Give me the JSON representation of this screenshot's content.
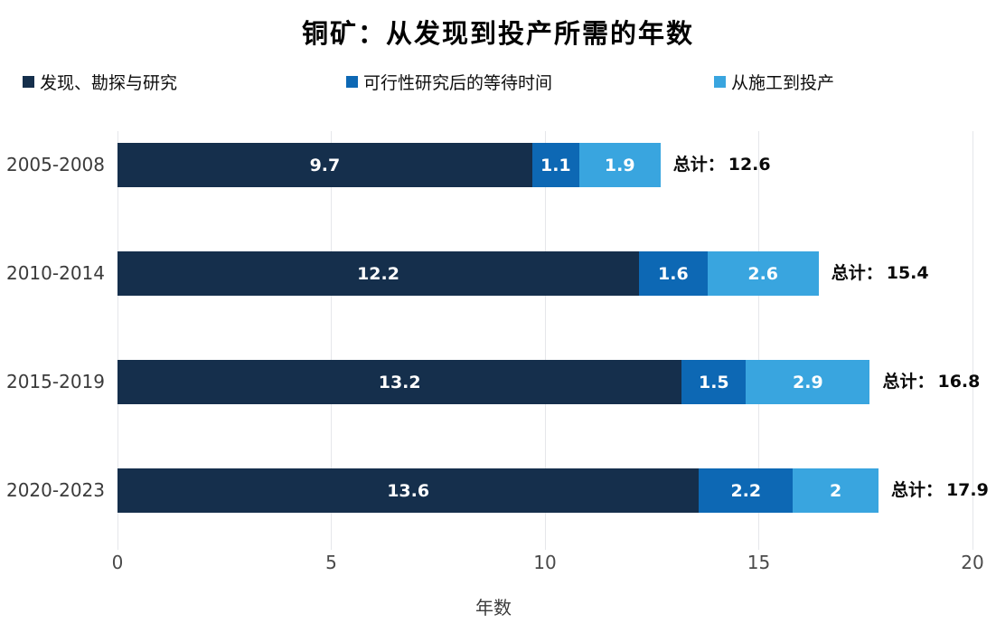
{
  "title": "铜矿：从发现到投产所需的年数",
  "xlabel": "年数",
  "total_prefix": "总计：",
  "legend": [
    {
      "label": "发现、勘探与研究",
      "color": "#152f4c"
    },
    {
      "label": "可行性研究后的等待时间",
      "color": "#0d68b4"
    },
    {
      "label": "从施工到投产",
      "color": "#39a5df"
    }
  ],
  "chart_data": {
    "type": "bar",
    "orientation": "horizontal",
    "stacked": true,
    "title": "铜矿：从发现到投产所需的年数",
    "xlabel": "年数",
    "xlim": [
      0,
      20
    ],
    "x_ticks": [
      0,
      5,
      10,
      15,
      20
    ],
    "grid": "vertical",
    "legend_position": "top",
    "categories": [
      "2005-2008",
      "2010-2014",
      "2015-2019",
      "2020-2023"
    ],
    "series": [
      {
        "name": "发现、勘探与研究",
        "color": "#152f4c",
        "values": [
          9.7,
          12.2,
          13.2,
          13.6
        ]
      },
      {
        "name": "可行性研究后的等待时间",
        "color": "#0d68b4",
        "values": [
          1.1,
          1.6,
          1.5,
          2.2
        ]
      },
      {
        "name": "从施工到投产",
        "color": "#39a5df",
        "values": [
          1.9,
          2.6,
          2.9,
          2
        ]
      }
    ],
    "totals": [
      12.6,
      15.4,
      16.8,
      17.9
    ],
    "total_labels": [
      "总计：12.6",
      "总计：15.4",
      "总计：16.8",
      "总计：17.9"
    ]
  }
}
